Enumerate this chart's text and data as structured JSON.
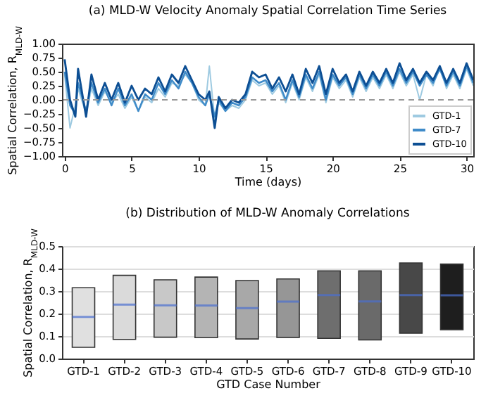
{
  "chart_data": [
    {
      "type": "line",
      "title": "(a) MLD-W Velocity Anomaly Spatial Correlation Time Series",
      "xlabel": "Time (days)",
      "ylabel": "Spatial Correlation, R$_{MLD-W}$",
      "x": [
        0,
        0.4,
        0.8,
        1.0,
        1.6,
        2.0,
        2.5,
        3,
        3.5,
        4,
        4.5,
        5,
        5.5,
        6,
        6.5,
        7,
        7.5,
        8,
        8.5,
        9,
        9.5,
        10,
        10.5,
        10.8,
        11.2,
        11.5,
        12,
        12.5,
        13,
        13.5,
        14,
        14.5,
        15,
        15.5,
        16,
        16.5,
        17,
        17.5,
        18,
        18.5,
        19,
        19.5,
        20,
        20.5,
        21,
        21.5,
        22,
        22.5,
        23,
        23.5,
        24,
        24.5,
        25,
        25.5,
        26,
        26.5,
        27,
        27.5,
        28,
        28.5,
        29,
        29.5,
        30,
        30.5
      ],
      "series": [
        {
          "name": "GTD-1",
          "color": "#9ecae1",
          "values": [
            0.45,
            -0.5,
            -0.1,
            0.2,
            -0.25,
            0.2,
            -0.1,
            0.15,
            -0.05,
            0.1,
            -0.15,
            0.05,
            -0.2,
            0.05,
            -0.05,
            0.2,
            0.05,
            0.3,
            0.25,
            0.45,
            0.3,
            0.0,
            -0.1,
            0.6,
            -0.35,
            -0.05,
            -0.2,
            -0.1,
            -0.15,
            0.0,
            0.35,
            0.25,
            0.3,
            0.1,
            0.25,
            -0.05,
            0.3,
            0.0,
            0.4,
            0.15,
            0.45,
            -0.05,
            0.4,
            0.2,
            0.35,
            0.05,
            0.4,
            0.15,
            0.4,
            0.2,
            0.45,
            0.2,
            0.5,
            0.25,
            0.45,
            0.0,
            0.45,
            0.25,
            0.6,
            0.2,
            0.45,
            0.2,
            0.55,
            0.25
          ]
        },
        {
          "name": "GTD-7",
          "color": "#3f8bc9",
          "values": [
            0.5,
            -0.1,
            -0.25,
            0.3,
            -0.2,
            0.3,
            -0.05,
            0.2,
            -0.1,
            0.2,
            -0.1,
            0.1,
            -0.2,
            0.1,
            0.0,
            0.3,
            0.1,
            0.35,
            0.2,
            0.5,
            0.3,
            0.05,
            -0.1,
            0.1,
            -0.3,
            0.0,
            -0.2,
            -0.05,
            -0.1,
            0.05,
            0.4,
            0.3,
            0.35,
            0.15,
            0.3,
            0.0,
            0.35,
            0.05,
            0.45,
            0.2,
            0.5,
            0.0,
            0.45,
            0.25,
            0.4,
            0.1,
            0.45,
            0.2,
            0.45,
            0.25,
            0.5,
            0.25,
            0.55,
            0.3,
            0.5,
            0.25,
            0.45,
            0.3,
            0.55,
            0.25,
            0.5,
            0.25,
            0.6,
            0.3
          ]
        },
        {
          "name": "GTD-10",
          "color": "#0d4f94",
          "values": [
            0.72,
            0.0,
            -0.3,
            0.55,
            -0.3,
            0.45,
            0.0,
            0.3,
            0.0,
            0.3,
            -0.05,
            0.25,
            0.0,
            0.2,
            0.1,
            0.4,
            0.15,
            0.45,
            0.3,
            0.6,
            0.35,
            0.1,
            0.0,
            0.15,
            -0.5,
            0.05,
            -0.15,
            0.0,
            -0.05,
            0.1,
            0.5,
            0.4,
            0.45,
            0.2,
            0.4,
            0.15,
            0.45,
            0.1,
            0.55,
            0.3,
            0.6,
            0.1,
            0.55,
            0.3,
            0.45,
            0.15,
            0.5,
            0.25,
            0.5,
            0.3,
            0.55,
            0.3,
            0.65,
            0.35,
            0.55,
            0.3,
            0.5,
            0.35,
            0.6,
            0.3,
            0.55,
            0.3,
            0.65,
            0.35
          ]
        }
      ],
      "xlim": [
        -0.2,
        30.5
      ],
      "xticks": [
        0,
        5,
        10,
        15,
        20,
        25,
        30
      ],
      "ylim": [
        -1,
        1
      ],
      "yticks": [
        {
          "value": -1,
          "label": "−1.00"
        },
        {
          "value": -0.75,
          "label": "−0.75"
        },
        {
          "value": -0.5,
          "label": "−0.50"
        },
        {
          "value": -0.25,
          "label": "−0.25"
        },
        {
          "value": 0,
          "label": "0.00"
        },
        {
          "value": 0.25,
          "label": "0.25"
        },
        {
          "value": 0.5,
          "label": "0.50"
        },
        {
          "value": 0.75,
          "label": "0.75"
        },
        {
          "value": 1,
          "label": "1.00"
        }
      ],
      "ref_lines": [
        {
          "axis": "y",
          "value": 0,
          "color": "#999999",
          "line_style": "dashed"
        }
      ],
      "legend": "bottom right",
      "grid": false,
      "marker": "none",
      "line_style": "solid"
    },
    {
      "type": "box",
      "title": "(b) Distribution of MLD-W Anomaly Correlations",
      "xlabel": "GTD Case Number",
      "ylabel": "Spatial Correlation, R$_{MLD-W}$",
      "categories": [
        "GTD-1",
        "GTD-2",
        "GTD-3",
        "GTD-4",
        "GTD-5",
        "GTD-6",
        "GTD-7",
        "GTD-8",
        "GTD-9",
        "GTD-10"
      ],
      "colors": [
        "#e0e0e0",
        "#dadada",
        "#c8c8c8",
        "#b4b4b4",
        "#a8a8a8",
        "#969696",
        "#6e6e6e",
        "#6a6a6a",
        "#484848",
        "#1e1e1e"
      ],
      "boxes": [
        {
          "low": 0.05,
          "q1": 0.05,
          "median": 0.185,
          "q3": 0.315,
          "high": 0.315
        },
        {
          "low": 0.085,
          "q1": 0.085,
          "median": 0.24,
          "q3": 0.37,
          "high": 0.37
        },
        {
          "low": 0.095,
          "q1": 0.095,
          "median": 0.237,
          "q3": 0.35,
          "high": 0.35
        },
        {
          "low": 0.093,
          "q1": 0.093,
          "median": 0.236,
          "q3": 0.362,
          "high": 0.362
        },
        {
          "low": 0.087,
          "q1": 0.087,
          "median": 0.224,
          "q3": 0.347,
          "high": 0.347
        },
        {
          "low": 0.094,
          "q1": 0.094,
          "median": 0.253,
          "q3": 0.354,
          "high": 0.354
        },
        {
          "low": 0.09,
          "q1": 0.09,
          "median": 0.282,
          "q3": 0.39,
          "high": 0.39
        },
        {
          "low": 0.083,
          "q1": 0.083,
          "median": 0.254,
          "q3": 0.39,
          "high": 0.39
        },
        {
          "low": 0.113,
          "q1": 0.113,
          "median": 0.282,
          "q3": 0.425,
          "high": 0.425
        },
        {
          "low": 0.128,
          "q1": 0.128,
          "median": 0.281,
          "q3": 0.42,
          "high": 0.42
        }
      ],
      "ylim": [
        0,
        0.5
      ],
      "yticks": [
        {
          "value": 0,
          "label": "0.0"
        },
        0.1,
        0.2,
        0.3,
        0.4,
        0.5
      ],
      "grid": "y"
    }
  ]
}
